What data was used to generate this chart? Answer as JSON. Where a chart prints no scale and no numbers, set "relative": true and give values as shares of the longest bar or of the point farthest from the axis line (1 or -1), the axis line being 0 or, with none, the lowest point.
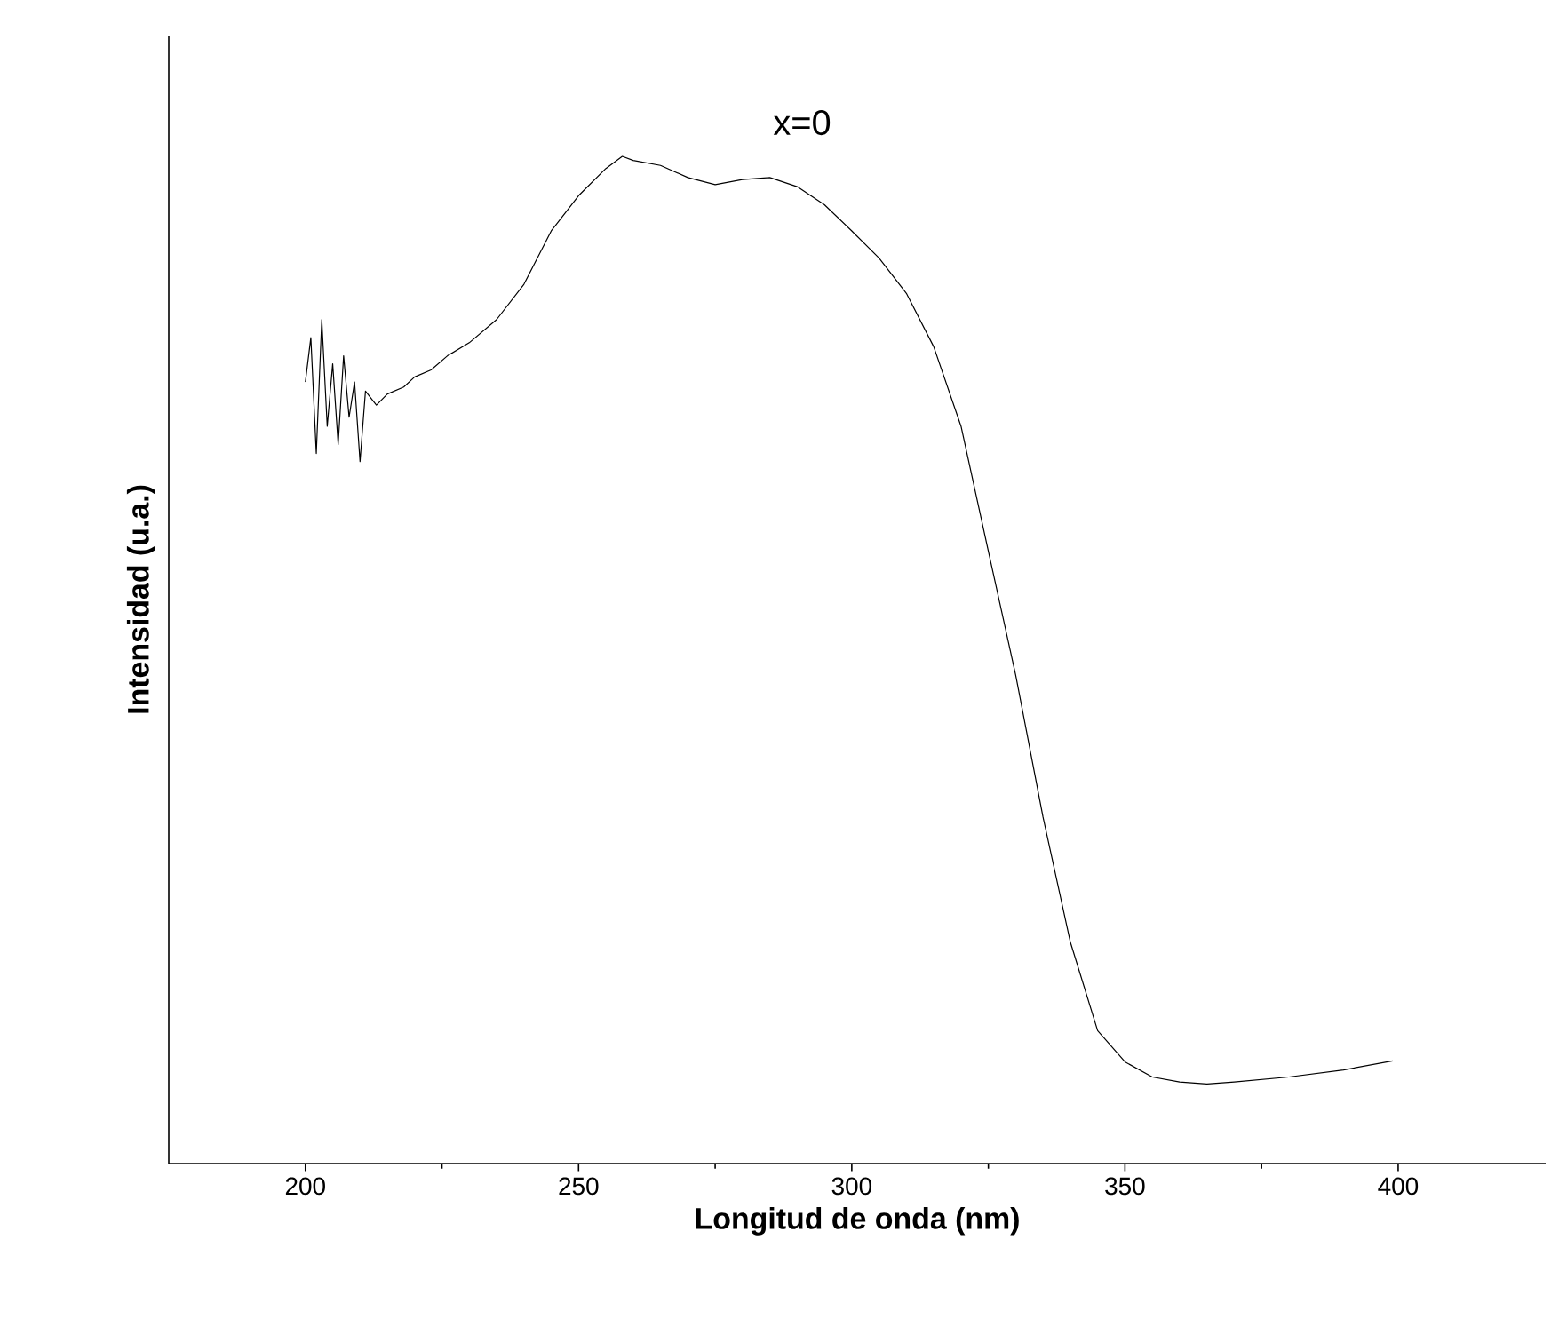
{
  "chart_data": {
    "type": "line",
    "title": "x=0",
    "xlabel": "Longitud de onda (nm)",
    "ylabel": "Intensidad (u.a.)",
    "relative": true,
    "tick_labels": "x",
    "xlim": [
      175,
      427
    ],
    "xticks": [
      200,
      250,
      300,
      350,
      400
    ],
    "x": [
      200,
      201,
      202,
      203,
      204,
      205,
      206,
      207,
      208,
      209,
      210,
      211,
      213,
      215,
      218,
      220,
      223,
      226,
      230,
      235,
      240,
      245,
      250,
      255,
      258,
      260,
      265,
      270,
      275,
      280,
      285,
      290,
      295,
      300,
      305,
      310,
      315,
      320,
      325,
      330,
      335,
      340,
      345,
      350,
      355,
      360,
      365,
      370,
      380,
      390,
      399
    ],
    "series": [
      {
        "color": "#000000",
        "values": [
          0.776,
          0.82,
          0.705,
          0.838,
          0.732,
          0.794,
          0.714,
          0.802,
          0.741,
          0.776,
          0.697,
          0.767,
          0.753,
          0.764,
          0.771,
          0.781,
          0.788,
          0.802,
          0.815,
          0.838,
          0.873,
          0.926,
          0.961,
          0.988,
          1,
          0.996,
          0.991,
          0.979,
          0.972,
          0.977,
          0.979,
          0.97,
          0.952,
          0.926,
          0.899,
          0.864,
          0.811,
          0.732,
          0.608,
          0.485,
          0.344,
          0.22,
          0.132,
          0.101,
          0.086,
          0.081,
          0.079,
          0.081,
          0.086,
          0.093,
          0.102
        ]
      }
    ]
  }
}
